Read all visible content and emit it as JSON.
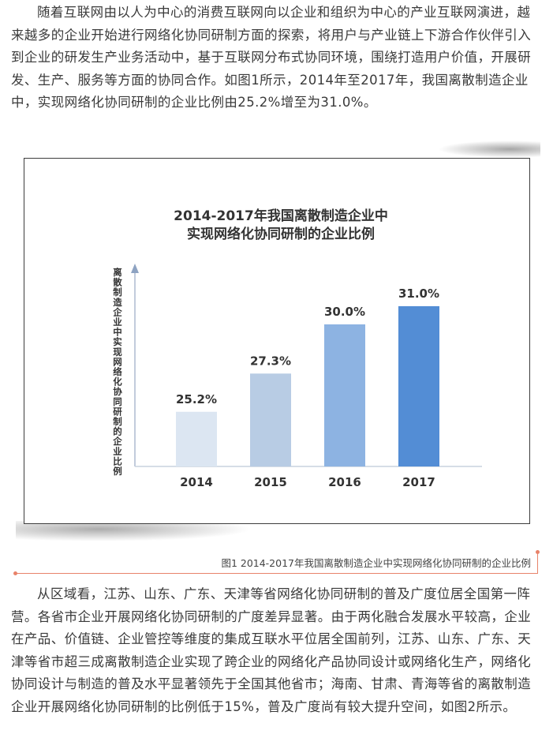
{
  "article": {
    "para1": "随着互联网由以人为中心的消费互联网向以企业和组织为中心的产业互联网演进，越来越多的企业开始进行网络化协同研制方面的探索，将用户与产业链上下游合作伙伴引入到企业的研发生产业务活动中，基于互联网分布式协同环境，围绕打造用户价值，开展研发、生产、服务等方面的协同合作。如图1所示，2014年至2017年，我国离散制造企业中，实现网络化协同研制的企业比例由25.2%增至为31.0%。",
    "caption": "图1 2014-2017年我国离散制造企业中实现网络化协同研制的企业比例",
    "para2": "从区域看，江苏、山东、广东、天津等省网络化协同研制的普及广度位居全国第一阵营。各省市企业开展网络化协同研制的广度差异显著。由于两化融合发展水平较高，企业在产品、价值链、企业管控等维度的集成互联水平位居全国前列，江苏、山东、广东、天津等省市超三成离散制造企业实现了跨企业的网络化产品协同设计或网络化生产，网络化协同设计与制造的普及水平显著领先于全国其他省市；海南、甘肃、青海等省的离散制造企业开展网络化协同研制的比例低于15%，普及广度尚有较大提升空间，如图2所示。"
  },
  "chart_data": {
    "type": "bar",
    "title_line1": "2014-2017年我国离散制造企业中",
    "title_line2": "实现网络化协同研制的企业比例",
    "ylabel": "离散制造企业中实现网络化协同研制的企业比例",
    "xlabel": "",
    "categories": [
      "2014",
      "2015",
      "2016",
      "2017"
    ],
    "values": [
      25.2,
      27.3,
      30.0,
      31.0
    ],
    "value_labels": [
      "25.2%",
      "27.3%",
      "30.0%",
      "31.0%"
    ],
    "bar_colors": [
      "#dce6f2",
      "#b8cce4",
      "#8db3e2",
      "#538dd5"
    ],
    "ylim": [
      22.2,
      32.6
    ],
    "grid": false,
    "legend": "none"
  }
}
